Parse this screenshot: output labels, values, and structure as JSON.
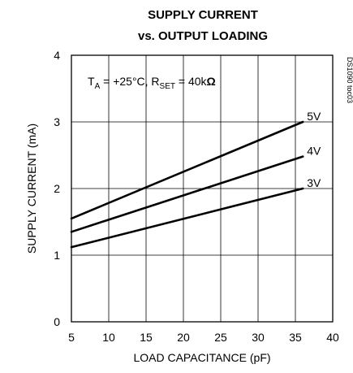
{
  "chart_data": {
    "type": "line",
    "title_line1": "SUPPLY CURRENT",
    "title_line2": "vs. OUTPUT LOADING",
    "xlabel": "LOAD CAPACITANCE (pF)",
    "ylabel": "SUPPLY CURRENT (mA)",
    "xlim": [
      5,
      40
    ],
    "ylim": [
      0,
      4
    ],
    "xticks": [
      5,
      10,
      15,
      20,
      25,
      30,
      35,
      40
    ],
    "yticks": [
      0,
      1,
      2,
      3,
      4
    ],
    "grid": true,
    "condition": {
      "t_main": "T",
      "t_sub": "A",
      "t_rest": " = +25°C, R",
      "r_sub": "SET",
      "r_rest": " = 40k",
      "omega": "Ω"
    },
    "doc_number": "DS1090 toc03",
    "series": [
      {
        "name": "5V",
        "x": [
          5,
          36
        ],
        "y": [
          1.55,
          3.0
        ]
      },
      {
        "name": "4V",
        "x": [
          5,
          36
        ],
        "y": [
          1.35,
          2.48
        ]
      },
      {
        "name": "3V",
        "x": [
          5,
          36
        ],
        "y": [
          1.12,
          2.0
        ]
      }
    ]
  }
}
